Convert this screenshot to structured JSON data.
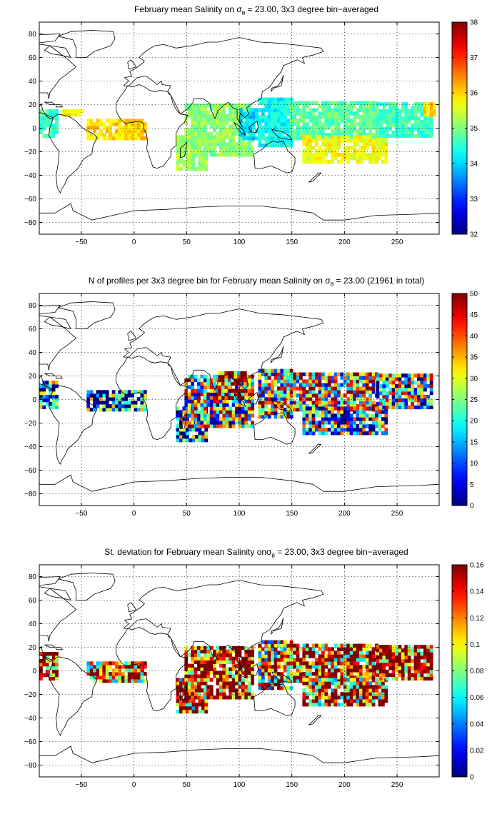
{
  "chart_data": [
    {
      "type": "heatmap",
      "title_pre": "February mean Salinity on ",
      "title_post": " = 23.00, 3x3 degree bin−averaged",
      "sigma_symbol": "σ",
      "sigma_subscript": "θ",
      "xlim": [
        -90,
        290
      ],
      "ylim": [
        -90,
        90
      ],
      "x_ticks": [
        -50,
        0,
        50,
        100,
        150,
        200,
        250
      ],
      "y_ticks": [
        -80,
        -60,
        -40,
        -20,
        0,
        20,
        40,
        60,
        80
      ],
      "grid": true,
      "colorbar": {
        "range": [
          32,
          38
        ],
        "ticks": [
          32,
          33,
          34,
          35,
          36,
          37,
          38
        ]
      },
      "colormap": "jet",
      "regions": [
        {
          "x": [
            -90,
            -72
          ],
          "y": [
            -8,
            14
          ],
          "value": 34.6
        },
        {
          "x": [
            -72,
            -50
          ],
          "y": [
            10,
            16
          ],
          "value": 35.8
        },
        {
          "x": [
            -45,
            12
          ],
          "y": [
            -10,
            8
          ],
          "value": 36.0
        },
        {
          "x": [
            40,
            68
          ],
          "y": [
            -36,
            -6
          ],
          "value": 35.2
        },
        {
          "x": [
            48,
            112
          ],
          "y": [
            -24,
            20
          ],
          "value": 35.1
        },
        {
          "x": [
            100,
            118
          ],
          "y": [
            -10,
            16
          ],
          "value": 34.0
        },
        {
          "x": [
            118,
            150
          ],
          "y": [
            -16,
            26
          ],
          "value": 34.3
        },
        {
          "x": [
            148,
            230
          ],
          "y": [
            -10,
            22
          ],
          "value": 34.8
        },
        {
          "x": [
            160,
            240
          ],
          "y": [
            -30,
            -8
          ],
          "value": 35.7
        },
        {
          "x": [
            230,
            282
          ],
          "y": [
            -8,
            22
          ],
          "value": 34.6
        },
        {
          "x": [
            275,
            285
          ],
          "y": [
            10,
            20
          ],
          "value": 36.0
        }
      ]
    },
    {
      "type": "heatmap",
      "title_pre": "N of profiles per 3x3 degree bin for February mean Salinity on ",
      "title_post": " = 23.00 (21961 in total)",
      "sigma_symbol": "σ",
      "sigma_subscript": "θ",
      "xlim": [
        -90,
        290
      ],
      "ylim": [
        -90,
        90
      ],
      "x_ticks": [
        -50,
        0,
        50,
        100,
        150,
        200,
        250
      ],
      "y_ticks": [
        -80,
        -60,
        -40,
        -20,
        0,
        20,
        40,
        60,
        80
      ],
      "grid": true,
      "colorbar": {
        "range": [
          0,
          50
        ],
        "ticks": [
          0,
          5,
          10,
          15,
          20,
          25,
          30,
          35,
          40,
          45,
          50
        ]
      },
      "colormap": "jet",
      "regions": [
        {
          "x": [
            -90,
            -72
          ],
          "y": [
            -8,
            14
          ],
          "value": 14
        },
        {
          "x": [
            -45,
            12
          ],
          "y": [
            -10,
            8
          ],
          "value": 8
        },
        {
          "x": [
            40,
            68
          ],
          "y": [
            -36,
            -6
          ],
          "value": 12
        },
        {
          "x": [
            48,
            112
          ],
          "y": [
            -24,
            20
          ],
          "value": 26
        },
        {
          "x": [
            80,
            105
          ],
          "y": [
            0,
            22
          ],
          "value": 42
        },
        {
          "x": [
            118,
            150
          ],
          "y": [
            -16,
            26
          ],
          "value": 30
        },
        {
          "x": [
            148,
            230
          ],
          "y": [
            -10,
            22
          ],
          "value": 32
        },
        {
          "x": [
            160,
            240
          ],
          "y": [
            -30,
            -8
          ],
          "value": 18
        },
        {
          "x": [
            230,
            282
          ],
          "y": [
            -8,
            22
          ],
          "value": 20
        }
      ]
    },
    {
      "type": "heatmap",
      "title_pre": "St. deviation for February mean Salinity on",
      "title_post": " = 23.00, 3x3 degree bin−averaged",
      "sigma_symbol": "σ",
      "sigma_subscript": "θ",
      "xlim": [
        -90,
        290
      ],
      "ylim": [
        -90,
        90
      ],
      "x_ticks": [
        -50,
        0,
        50,
        100,
        150,
        200,
        250
      ],
      "y_ticks": [
        -80,
        -60,
        -40,
        -20,
        0,
        20,
        40,
        60,
        80
      ],
      "grid": true,
      "colorbar": {
        "range": [
          0,
          0.16
        ],
        "ticks": [
          0,
          0.02,
          0.04,
          0.06,
          0.08,
          0.1,
          0.12,
          0.14,
          0.16
        ]
      },
      "colormap": "jet",
      "regions": [
        {
          "x": [
            -90,
            -72
          ],
          "y": [
            -8,
            14
          ],
          "value": 0.15
        },
        {
          "x": [
            -45,
            12
          ],
          "y": [
            -10,
            8
          ],
          "value": 0.13
        },
        {
          "x": [
            40,
            68
          ],
          "y": [
            -36,
            -6
          ],
          "value": 0.13
        },
        {
          "x": [
            48,
            112
          ],
          "y": [
            -24,
            20
          ],
          "value": 0.15
        },
        {
          "x": [
            118,
            150
          ],
          "y": [
            -16,
            26
          ],
          "value": 0.12
        },
        {
          "x": [
            148,
            230
          ],
          "y": [
            -10,
            22
          ],
          "value": 0.14
        },
        {
          "x": [
            160,
            240
          ],
          "y": [
            -30,
            -8
          ],
          "value": 0.13
        },
        {
          "x": [
            230,
            282
          ],
          "y": [
            -8,
            22
          ],
          "value": 0.15
        }
      ]
    }
  ]
}
